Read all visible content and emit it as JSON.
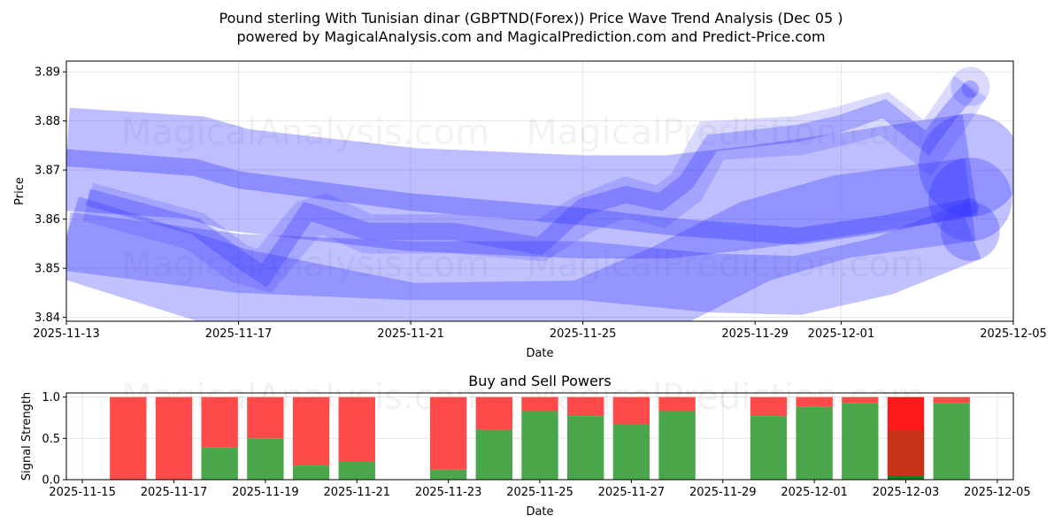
{
  "title_line1": "Pound sterling With Tunisian dinar (GBPTND(Forex)) Price Wave Trend Analysis (Dec 05 )",
  "title_line2": "powered by MagicalAnalysis.com and MagicalPrediction.com and Predict-Price.com",
  "watermarks": [
    "MagicalAnalysis.com",
    "MagicalPrediction.com"
  ],
  "colors": {
    "band": "#3333ff",
    "buy": "#4aa64a",
    "sell": "#ff4a4a",
    "sell_strong": "#ff1a1a",
    "mixed": "#c83218",
    "buy_dark": "#1e7a1e"
  },
  "chart_data": [
    {
      "type": "area",
      "title": "",
      "xlabel": "Date",
      "ylabel": "Price",
      "xlim": [
        "2025-11-13",
        "2025-12-05"
      ],
      "ylim": [
        3.8392,
        3.8922
      ],
      "xticks": [
        "2025-11-13",
        "2025-11-17",
        "2025-11-21",
        "2025-11-25",
        "2025-11-29",
        "2025-12-01",
        "2025-12-05"
      ],
      "yticks": [
        3.84,
        3.85,
        3.86,
        3.87,
        3.88,
        3.89
      ],
      "grid": true,
      "bands": [
        {
          "name": "wave-upper-wide",
          "width": 0.021,
          "opacity": 0.32,
          "points": [
            [
              "2025-11-13",
              3.8722
            ],
            [
              "2025-11-16",
              3.8705
            ],
            [
              "2025-11-17",
              3.868
            ],
            [
              "2025-11-21",
              3.864
            ],
            [
              "2025-11-25",
              3.8625
            ],
            [
              "2025-11-27",
              3.8625
            ],
            [
              "2025-11-29",
              3.8645
            ],
            [
              "2025-12-01",
              3.867
            ],
            [
              "2025-12-04",
              3.871
            ]
          ]
        },
        {
          "name": "wave-bottom-wide",
          "width": 0.017,
          "opacity": 0.3,
          "points": [
            [
              "2025-11-13",
              3.8565
            ],
            [
              "2025-11-17",
              3.8455
            ],
            [
              "2025-11-21",
              3.8385
            ],
            [
              "2025-11-25",
              3.839
            ],
            [
              "2025-11-27",
              3.8465
            ],
            [
              "2025-11-29",
              3.8555
            ],
            [
              "2025-12-01",
              3.8605
            ],
            [
              "2025-12-04",
              3.864
            ]
          ]
        },
        {
          "name": "wave-lower",
          "width": 0.012,
          "opacity": 0.3,
          "points": [
            [
              "2025-11-13",
              3.8555
            ],
            [
              "2025-11-17",
              3.851
            ],
            [
              "2025-11-21",
              3.8495
            ],
            [
              "2025-11-25",
              3.8495
            ],
            [
              "2025-11-28",
              3.847
            ],
            [
              "2025-11-30",
              3.8465
            ],
            [
              "2025-12-02",
              3.8505
            ],
            [
              "2025-12-04",
              3.8575
            ]
          ]
        },
        {
          "name": "wave-dark-strip",
          "width": 0.0035,
          "opacity": 0.35,
          "points": [
            [
              "2025-11-13",
              3.8725
            ],
            [
              "2025-11-16",
              3.8705
            ],
            [
              "2025-11-17",
              3.868
            ],
            [
              "2025-11-21",
              3.8635
            ],
            [
              "2025-11-25",
              3.8605
            ],
            [
              "2025-11-27",
              3.8585
            ],
            [
              "2025-11-30",
              3.8565
            ],
            [
              "2025-12-02",
              3.859
            ],
            [
              "2025-12-04",
              3.8625
            ]
          ]
        },
        {
          "name": "wave-squiggle-wide",
          "width": 0.008,
          "opacity": 0.18,
          "points": [
            [
              "2025-11-13.5",
              3.8635
            ],
            [
              "2025-11-16",
              3.8575
            ],
            [
              "2025-11-17",
              3.851
            ],
            [
              "2025-11-17.6",
              3.8495
            ],
            [
              "2025-11-18.6",
              3.86
            ],
            [
              "2025-11-19",
              3.861
            ],
            [
              "2025-11-20",
              3.857
            ],
            [
              "2025-11-22",
              3.857
            ],
            [
              "2025-11-24",
              3.8555
            ],
            [
              "2025-11-25",
              3.861
            ],
            [
              "2025-11-26",
              3.8645
            ],
            [
              "2025-11-26.8",
              3.8625
            ],
            [
              "2025-11-27.4",
              3.8665
            ],
            [
              "2025-11-28",
              3.876
            ],
            [
              "2025-11-30",
              3.877
            ],
            [
              "2025-12-01",
              3.879
            ],
            [
              "2025-12-02",
              3.8815
            ],
            [
              "2025-12-03",
              3.8745
            ],
            [
              "2025-12-03.5",
              3.8805
            ],
            [
              "2025-12-04",
              3.887
            ]
          ]
        },
        {
          "name": "wave-squiggle",
          "width": 0.0035,
          "opacity": 0.3,
          "points": [
            [
              "2025-11-13.5",
              3.8645
            ],
            [
              "2025-11-16",
              3.8585
            ],
            [
              "2025-11-17",
              3.852
            ],
            [
              "2025-11-17.6",
              3.8485
            ],
            [
              "2025-11-18.6",
              3.8615
            ],
            [
              "2025-11-19",
              3.8605
            ],
            [
              "2025-11-20",
              3.8575
            ],
            [
              "2025-11-22",
              3.8575
            ],
            [
              "2025-11-24",
              3.8545
            ],
            [
              "2025-11-25",
              3.8625
            ],
            [
              "2025-11-26",
              3.865
            ],
            [
              "2025-11-26.8",
              3.8635
            ],
            [
              "2025-11-27.4",
              3.8675
            ],
            [
              "2025-11-28",
              3.8755
            ],
            [
              "2025-11-30",
              3.8775
            ],
            [
              "2025-12-01",
              3.8795
            ],
            [
              "2025-12-02",
              3.8825
            ],
            [
              "2025-12-03",
              3.8755
            ],
            [
              "2025-12-03.5",
              3.8815
            ],
            [
              "2025-12-04",
              3.8865
            ]
          ]
        }
      ]
    },
    {
      "type": "bar",
      "title": "Buy and Sell Powers",
      "xlabel": "Date",
      "ylabel": "Signal Strength",
      "xlim": [
        "2025-11-14.65",
        "2025-12-05.35"
      ],
      "ylim": [
        0,
        1.05
      ],
      "xticks": [
        "2025-11-15",
        "2025-11-17",
        "2025-11-19",
        "2025-11-21",
        "2025-11-23",
        "2025-11-25",
        "2025-11-27",
        "2025-11-29",
        "2025-12-01",
        "2025-12-03",
        "2025-12-05"
      ],
      "yticks": [
        "0.0",
        "0.5",
        "1.0"
      ],
      "grid": true,
      "categories": [
        "2025-11-16",
        "2025-11-17",
        "2025-11-18",
        "2025-11-19",
        "2025-11-20",
        "2025-11-21",
        "2025-11-23",
        "2025-11-24",
        "2025-11-25",
        "2025-11-26",
        "2025-11-27",
        "2025-11-28",
        "2025-11-30",
        "2025-12-01",
        "2025-12-02",
        "2025-12-03",
        "2025-12-04"
      ],
      "series": [
        {
          "name": "Buy",
          "values": [
            0,
            0,
            0.39,
            0.5,
            0.17,
            0.22,
            0.12,
            0.61,
            0.83,
            0.77,
            0.67,
            0.83,
            0.77,
            0.88,
            0.93,
            0.05,
            0.93
          ]
        },
        {
          "name": "Sell",
          "values": [
            1,
            1,
            0.61,
            0.5,
            0.83,
            0.78,
            0.88,
            0.39,
            0.17,
            0.23,
            0.33,
            0.17,
            0.23,
            0.12,
            0.07,
            0.95,
            0.07
          ]
        }
      ],
      "overlay": {
        "date": "2025-12-03",
        "mixed_top": 0.6
      }
    }
  ]
}
